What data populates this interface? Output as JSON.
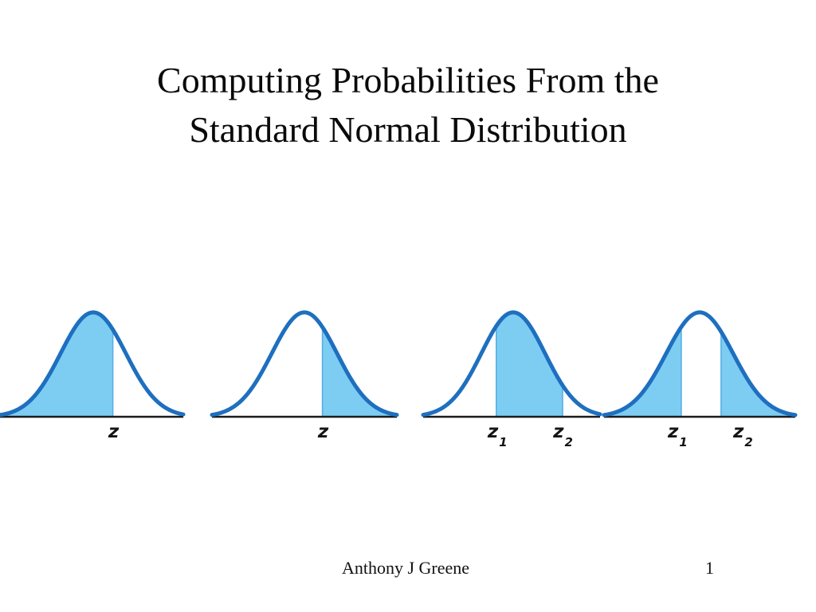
{
  "slide": {
    "title_line1": "Computing Probabilities From the",
    "title_line2": "Standard Normal Distribution",
    "footer": {
      "author": "Anthony J Greene",
      "page_number": "1"
    }
  },
  "colors": {
    "curve_stroke": "#1e6fbf",
    "area_fill": "#7dcdf3",
    "z_line": "#55b0e4",
    "baseline": "#1b1b1b",
    "text": "#0a0a0a"
  },
  "chart_data": {
    "type": "area",
    "title": "Computing Probabilities From the Standard Normal Distribution",
    "figures": [
      {
        "shaded": "left_of_z",
        "z_sigma": [
          0.6
        ],
        "labels": [
          {
            "text": "z",
            "sub": ""
          }
        ]
      },
      {
        "shaded": "right_of_z",
        "z_sigma": [
          0.55
        ],
        "labels": [
          {
            "text": "z",
            "sub": ""
          }
        ]
      },
      {
        "shaded": "between",
        "z_sigma": [
          -0.53,
          1.55
        ],
        "labels": [
          {
            "text": "z",
            "sub": "1"
          },
          {
            "text": "z",
            "sub": "2"
          }
        ]
      },
      {
        "shaded": "outside",
        "z_sigma": [
          -0.55,
          0.64
        ],
        "labels": [
          {
            "text": "z",
            "sub": "1"
          },
          {
            "text": "z",
            "sub": "2"
          }
        ]
      }
    ]
  }
}
